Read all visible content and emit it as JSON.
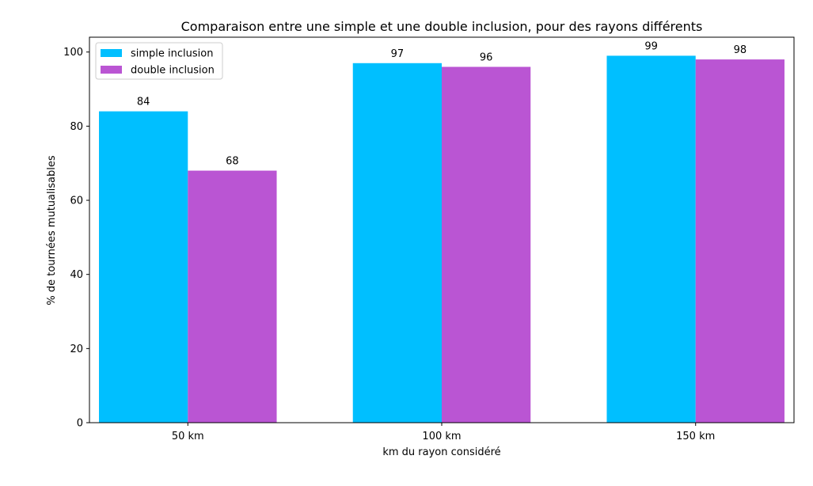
{
  "chart_data": {
    "type": "bar",
    "title": "Comparaison entre une simple et une double inclusion, pour des rayons différents",
    "xlabel": "km du rayon considéré",
    "ylabel": "% de tournées mutualisables",
    "categories": [
      "50 km",
      "100 km",
      "150 km"
    ],
    "series": [
      {
        "name": "simple inclusion",
        "color": "#00bfff",
        "values": [
          84,
          97,
          99
        ]
      },
      {
        "name": "double inclusion",
        "color": "#ba55d3",
        "values": [
          68,
          96,
          98
        ]
      }
    ],
    "ylim": [
      0,
      104
    ],
    "yticks": [
      0,
      20,
      40,
      60,
      80,
      100
    ],
    "grid": false,
    "legend_position": "top-left"
  }
}
